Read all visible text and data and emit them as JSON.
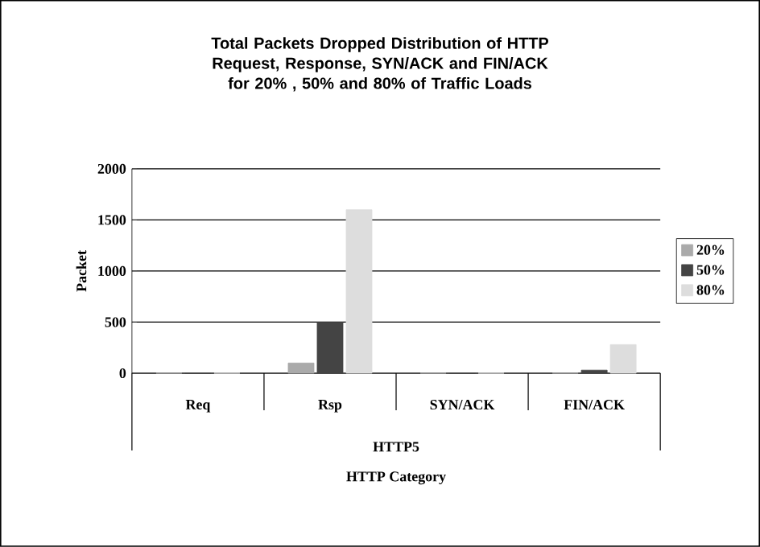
{
  "chart_data": {
    "type": "bar",
    "title": "Total Packets Dropped Distribution of HTTP Request, Response, SYN/ACK and FIN/ACK for 20% , 50% and 80% of Traffic Loads",
    "xlabel": "HTTP Category",
    "ylabel": "Packet",
    "annotations": [
      "HTTP5"
    ],
    "categories": [
      "Req",
      "Rsp",
      "SYN/ACK",
      "FIN/ACK"
    ],
    "series": [
      {
        "name": "20%",
        "color": "#aaaaaa",
        "values": [
          0,
          100,
          0,
          0
        ]
      },
      {
        "name": "50%",
        "color": "#444444",
        "values": [
          0,
          500,
          0,
          30
        ]
      },
      {
        "name": "80%",
        "color": "#dddddd",
        "values": [
          0,
          1600,
          0,
          280
        ]
      }
    ],
    "ylim": [
      0,
      2000
    ],
    "yticks": [
      0,
      500,
      1000,
      1500,
      2000
    ],
    "grid": "y",
    "legend": "right"
  }
}
